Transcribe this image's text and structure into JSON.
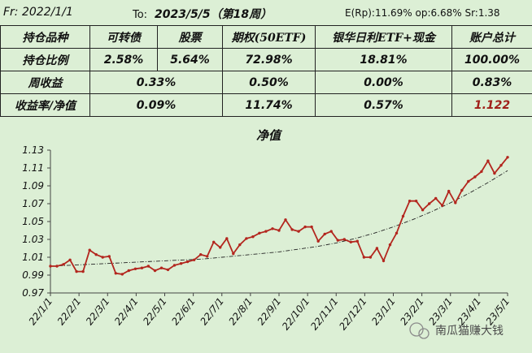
{
  "header": {
    "from": "Fr: 2022/1/1",
    "to_prefix": "To:",
    "to_date": "2023/5/5（第18周）",
    "stats": "E(Rp):11.69%  op:6.68%  Sr:1.38"
  },
  "table": {
    "headers": [
      "持仓品种",
      "可转债",
      "股票",
      "期权(50ETF)",
      "银华日利ETF+现金",
      "账户总计"
    ],
    "rows": [
      {
        "label": "持仓比例",
        "cells": [
          "2.58%",
          "5.64%",
          "72.98%",
          "18.81%",
          "100.00%"
        ]
      },
      {
        "label": "周收益",
        "cells": [
          "0.33%",
          "0.50%",
          "0.00%",
          "0.83%"
        ]
      },
      {
        "label": "收益率/净值",
        "cells": [
          "0.09%",
          "11.74%",
          "0.57%",
          "1.122"
        ]
      }
    ]
  },
  "watermark": "南瓜猫赚大钱",
  "colors": {
    "series": "#b3261e",
    "trend": "#222222",
    "highlight": "#a0201a"
  },
  "chart_data": {
    "type": "line",
    "title": "净值",
    "xlabel": "",
    "ylabel": "",
    "ylim": [
      0.97,
      1.13
    ],
    "yticks": [
      "0.97",
      "0.99",
      "1.01",
      "1.03",
      "1.05",
      "1.07",
      "1.09",
      "1.11",
      "1.13"
    ],
    "xticks": [
      "22/1/1",
      "22/2/1",
      "22/3/1",
      "22/4/1",
      "22/5/1",
      "22/6/1",
      "22/7/1",
      "22/8/1",
      "22/9/1",
      "22/10/1",
      "22/11/1",
      "22/12/1",
      "23/1/1",
      "23/2/1",
      "23/3/1",
      "23/4/1",
      "23/5/1"
    ],
    "grid": false,
    "legend": "none",
    "series": [
      {
        "values": [
          1.0,
          1.0,
          1.002,
          1.007,
          0.994,
          0.994,
          1.018,
          1.013,
          1.01,
          1.011,
          0.992,
          0.991,
          0.995,
          0.997,
          0.998,
          1.0,
          0.995,
          0.998,
          0.996,
          1.001,
          1.003,
          1.005,
          1.007,
          1.013,
          1.011,
          1.027,
          1.021,
          1.031,
          1.014,
          1.024,
          1.031,
          1.033,
          1.037,
          1.039,
          1.042,
          1.04,
          1.052,
          1.041,
          1.039,
          1.044,
          1.044,
          1.028,
          1.036,
          1.039,
          1.029,
          1.03,
          1.027,
          1.028,
          1.01,
          1.01,
          1.02,
          1.006,
          1.024,
          1.037,
          1.056,
          1.073,
          1.073,
          1.063,
          1.07,
          1.076,
          1.068,
          1.084,
          1.071,
          1.085,
          1.095,
          1.1,
          1.106,
          1.118,
          1.104,
          1.113,
          1.122
        ]
      },
      {
        "values": [
          1.0,
          1.001,
          1.002,
          1.003,
          1.004,
          1.005,
          1.006,
          1.007,
          1.008,
          1.01,
          1.012,
          1.014,
          1.016,
          1.019,
          1.022,
          1.026,
          1.031,
          1.037,
          1.044,
          1.052,
          1.061,
          1.071,
          1.082,
          1.094,
          1.107
        ]
      }
    ]
  }
}
